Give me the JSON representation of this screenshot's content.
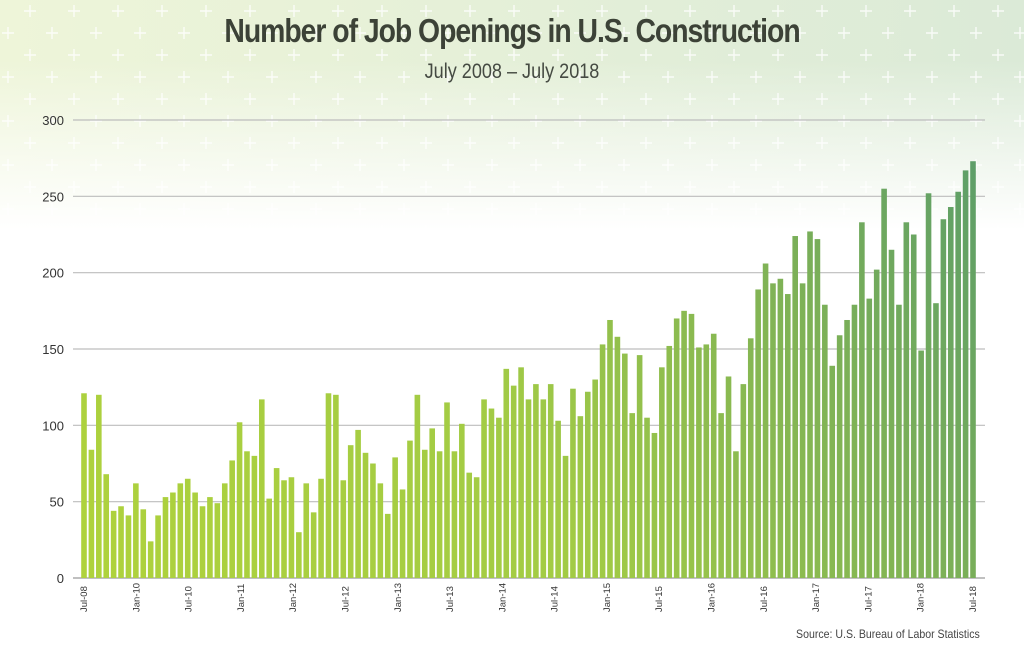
{
  "title": "Number of Job Openings in U.S. Construction",
  "subtitle": "July 2008 – July 2018",
  "source": "Source: U.S. Bureau of Labor Statistics",
  "colors": {
    "bar_light": "#acd03f",
    "bar_dark": "#5a9c6a",
    "grid": "#bdbdbd",
    "text": "#3c4237"
  },
  "chart_data": {
    "type": "bar",
    "title": "Number of Job Openings in U.S. Construction",
    "subtitle": "July 2008 – July 2018",
    "xlabel": "",
    "ylabel": "",
    "ylim": [
      0,
      300
    ],
    "yticks": [
      0,
      50,
      100,
      150,
      200,
      250,
      300
    ],
    "grid": true,
    "xtick_labels": [
      "Jul-08",
      "Jan-10",
      "Jul-10",
      "Jan-11",
      "Jan-12",
      "Jul-12",
      "Jan-13",
      "Jul-13",
      "Jan-14",
      "Jul-14",
      "Jan-15",
      "Jul-15",
      "Jan-16",
      "Jul-16",
      "Jan-17",
      "Jul-17",
      "Jan-18",
      "Jul-18"
    ],
    "values": [
      121,
      84,
      120,
      68,
      44,
      47,
      41,
      62,
      45,
      24,
      41,
      53,
      56,
      62,
      65,
      56,
      47,
      53,
      49,
      62,
      77,
      102,
      83,
      80,
      117,
      52,
      72,
      64,
      66,
      30,
      62,
      43,
      65,
      121,
      120,
      64,
      87,
      97,
      82,
      75,
      62,
      42,
      79,
      58,
      90,
      120,
      84,
      98,
      83,
      115,
      83,
      101,
      69,
      66,
      117,
      111,
      105,
      137,
      126,
      138,
      117,
      127,
      117,
      127,
      103,
      80,
      124,
      106,
      122,
      130,
      153,
      169,
      158,
      147,
      108,
      146,
      105,
      95,
      138,
      152,
      170,
      175,
      173,
      151,
      153,
      160,
      108,
      132,
      83,
      127,
      157,
      189,
      206,
      193,
      196,
      186,
      224,
      193,
      227,
      222,
      179,
      139,
      159,
      169,
      179,
      233,
      183,
      202,
      255,
      215,
      179,
      233,
      225,
      149,
      252,
      180,
      235,
      243,
      253,
      267,
      273
    ]
  }
}
